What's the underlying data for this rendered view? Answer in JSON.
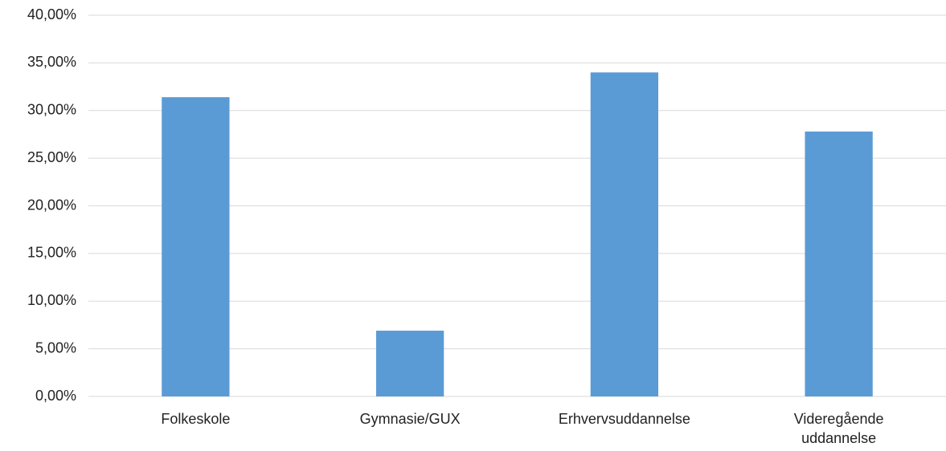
{
  "chart_data": {
    "type": "bar",
    "categories": [
      "Folkeskole",
      "Gymnasie/GUX",
      "Erhvervsuddannelse",
      "Videregående uddannelse"
    ],
    "values": [
      31.4,
      6.9,
      34.0,
      27.8
    ],
    "color": "#5b9bd5",
    "ylim": [
      0,
      40
    ],
    "yticks": [
      {
        "value": 0,
        "label": "0,00%"
      },
      {
        "value": 5,
        "label": "5,00%"
      },
      {
        "value": 10,
        "label": "10,00%"
      },
      {
        "value": 15,
        "label": "15,00%"
      },
      {
        "value": 20,
        "label": "20,00%"
      },
      {
        "value": 25,
        "label": "25,00%"
      },
      {
        "value": 30,
        "label": "30,00%"
      },
      {
        "value": 35,
        "label": "35,00%"
      },
      {
        "value": 40,
        "label": "40,00%"
      }
    ],
    "grid": true
  }
}
